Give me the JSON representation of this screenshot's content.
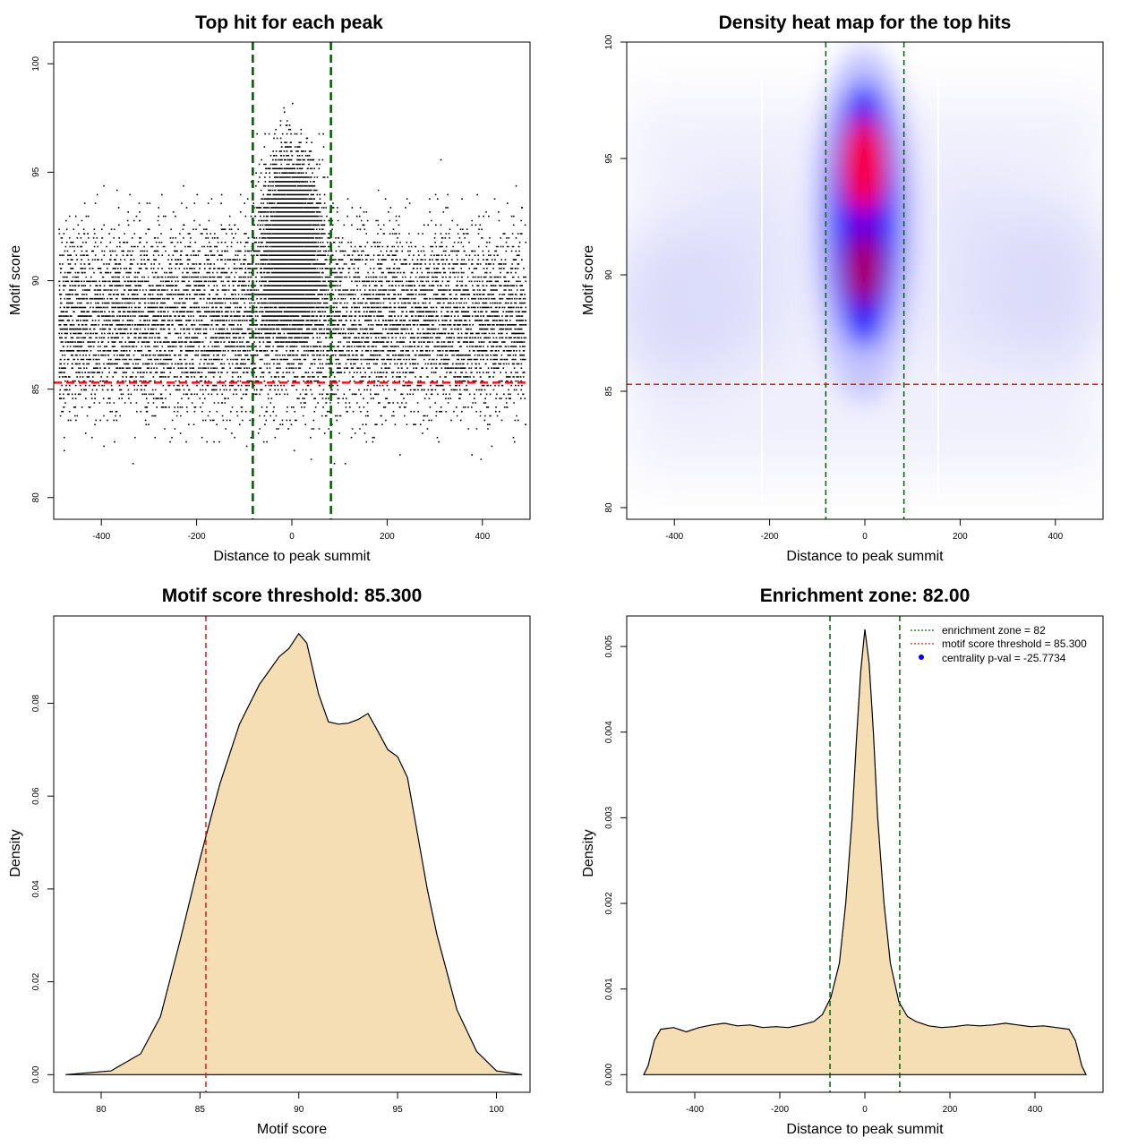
{
  "chart_data": [
    {
      "type": "scatter",
      "title": "Top hit for each peak",
      "xlabel": "Distance to peak summit",
      "ylabel": "Motif score",
      "xlim": [
        -500,
        500
      ],
      "ylim": [
        79,
        101
      ],
      "xticks": [
        -400,
        -200,
        0,
        200,
        400
      ],
      "yticks": [
        80,
        85,
        90,
        95,
        100
      ],
      "xtick_labels": [
        "-400",
        "-200",
        "0",
        "200",
        "400"
      ],
      "ytick_labels": [
        "80",
        "85",
        "90",
        "95",
        "100"
      ],
      "points_description": "approx. 15000 top hits, uniform background over -490..490 with a dense central cluster within +/-82",
      "reference_lines": [
        {
          "axis": "x",
          "value": -82,
          "color": "#006400",
          "style": "dashed"
        },
        {
          "axis": "x",
          "value": 82,
          "color": "#006400",
          "style": "dashed"
        },
        {
          "axis": "y",
          "value": 85.3,
          "color": "#e31a1c",
          "style": "dashed"
        }
      ]
    },
    {
      "type": "heatmap",
      "title": "Density heat map for the top hits",
      "xlabel": "Distance to peak summit",
      "ylabel": "Motif score",
      "xlim": [
        -500,
        500
      ],
      "ylim": [
        79.5,
        100
      ],
      "xticks": [
        -400,
        -200,
        0,
        200,
        400
      ],
      "yticks": [
        80,
        85,
        90,
        95,
        100
      ],
      "xtick_labels": [
        "-400",
        "-200",
        "0",
        "200",
        "400"
      ],
      "ytick_labels": [
        "80",
        "85",
        "90",
        "95",
        "100"
      ],
      "colors": [
        "#ffffff",
        "#0000ff",
        "#ff0000"
      ],
      "hotspots": [
        {
          "x": 0,
          "y": 94.5,
          "level": "high"
        },
        {
          "x": 0,
          "y": 90.5,
          "level": "medium"
        }
      ],
      "reference_lines": [
        {
          "axis": "x",
          "value": -82,
          "color": "#006400",
          "style": "dashed"
        },
        {
          "axis": "x",
          "value": 82,
          "color": "#006400",
          "style": "dashed"
        },
        {
          "axis": "y",
          "value": 85.3,
          "color": "#e31a1c",
          "style": "dashed"
        }
      ]
    },
    {
      "type": "area",
      "title": "Motif score threshold: 85.300",
      "xlabel": "Motif score",
      "ylabel": "Density",
      "xlim": [
        77.6,
        101.7
      ],
      "ylim": [
        -0.0038,
        0.0988
      ],
      "xticks": [
        80,
        85,
        90,
        95,
        100
      ],
      "yticks": [
        0.0,
        0.02,
        0.04,
        0.06,
        0.08
      ],
      "xtick_labels": [
        "80",
        "85",
        "90",
        "95",
        "100"
      ],
      "ytick_labels": [
        "0.00",
        "0.02",
        "0.04",
        "0.06",
        "0.08"
      ],
      "fill": "#f5deb3",
      "x": [
        78.2,
        80.5,
        82.0,
        83.0,
        84.0,
        85.0,
        86.0,
        87.0,
        88.0,
        89.0,
        89.5,
        90.0,
        90.4,
        91.0,
        91.5,
        92.0,
        92.5,
        93.0,
        93.5,
        94.0,
        94.5,
        95.0,
        95.5,
        96.0,
        96.5,
        97.0,
        97.5,
        98.0,
        99.0,
        100.0,
        101.3
      ],
      "y": [
        0.0,
        0.0008,
        0.0045,
        0.0125,
        0.029,
        0.0465,
        0.0625,
        0.0755,
        0.084,
        0.09,
        0.0918,
        0.095,
        0.093,
        0.082,
        0.076,
        0.0755,
        0.0757,
        0.0765,
        0.0778,
        0.074,
        0.07,
        0.0685,
        0.064,
        0.052,
        0.04,
        0.03,
        0.022,
        0.014,
        0.005,
        0.0008,
        0.0
      ],
      "reference_lines": [
        {
          "axis": "x",
          "value": 85.3,
          "color": "#e31a1c",
          "style": "dashed"
        }
      ]
    },
    {
      "type": "area",
      "title": "Enrichment zone: 82.00",
      "xlabel": "Distance to peak summit",
      "ylabel": "Density",
      "xlim": [
        -560,
        560
      ],
      "ylim": [
        -0.000206,
        0.005356
      ],
      "xticks": [
        -400,
        -200,
        0,
        200,
        400
      ],
      "yticks": [
        0.0,
        0.001,
        0.002,
        0.003,
        0.004,
        0.005
      ],
      "xtick_labels": [
        "-400",
        "-200",
        "0",
        "200",
        "400"
      ],
      "ytick_labels": [
        "0.000",
        "0.001",
        "0.002",
        "0.003",
        "0.004",
        "0.005"
      ],
      "fill": "#f5deb3",
      "x": [
        -520,
        -510,
        -495,
        -480,
        -450,
        -420,
        -390,
        -360,
        -330,
        -300,
        -270,
        -240,
        -210,
        -180,
        -150,
        -120,
        -100,
        -80,
        -60,
        -45,
        -30,
        -20,
        -10,
        0,
        10,
        20,
        30,
        45,
        60,
        80,
        100,
        120,
        150,
        180,
        210,
        240,
        270,
        300,
        330,
        360,
        390,
        420,
        450,
        480,
        495,
        510,
        520
      ],
      "y": [
        0.0,
        0.0001,
        0.0004,
        0.00053,
        0.00055,
        0.0005,
        0.00055,
        0.00058,
        0.0006,
        0.00057,
        0.00058,
        0.00055,
        0.00056,
        0.00055,
        0.00058,
        0.00062,
        0.0007,
        0.0009,
        0.0013,
        0.002,
        0.003,
        0.0039,
        0.0047,
        0.0052,
        0.0048,
        0.004,
        0.003,
        0.002,
        0.0013,
        0.00085,
        0.00068,
        0.00062,
        0.00057,
        0.00055,
        0.00056,
        0.00058,
        0.00057,
        0.00058,
        0.0006,
        0.00058,
        0.00056,
        0.00057,
        0.00055,
        0.00053,
        0.0004,
        0.0001,
        0.0
      ],
      "reference_lines": [
        {
          "axis": "x",
          "value": -82,
          "color": "#006400",
          "style": "dashed"
        },
        {
          "axis": "x",
          "value": 82,
          "color": "#006400",
          "style": "dashed"
        }
      ],
      "legend": {
        "position": "top-right",
        "entries": [
          {
            "label": "enrichment zone = 82",
            "color": "#006400",
            "marker": "dotted-line"
          },
          {
            "label": "motif score threshold = 85.300",
            "color": "#e31a1c",
            "marker": "dotted-line"
          },
          {
            "label": "centrality p-val = -25.7734",
            "color": "#0000ff",
            "marker": "point"
          }
        ]
      }
    }
  ]
}
